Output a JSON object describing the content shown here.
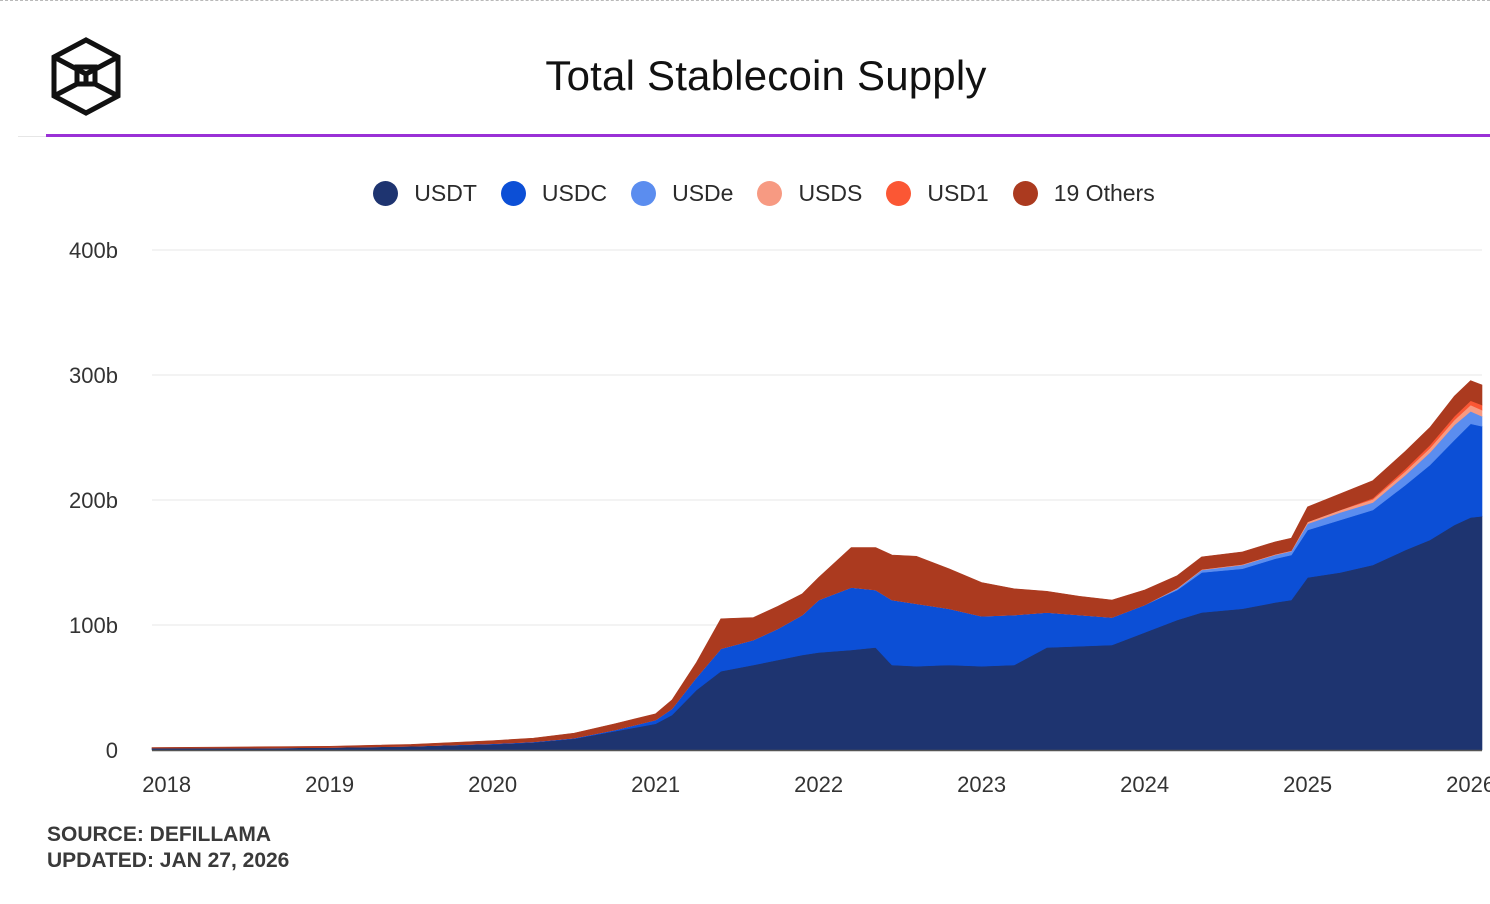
{
  "header": {
    "title": "Total Stablecoin Supply"
  },
  "footer": {
    "source": "SOURCE: DEFILLAMA",
    "updated": "UPDATED: JAN 27, 2026"
  },
  "colors": {
    "USDT": "#1e3470",
    "USDC": "#0c4fd6",
    "USDe": "#5b8def",
    "USDS": "#f79a82",
    "USD1": "#fb5734",
    "others": "#ab3a1f",
    "accent_line": "#9a31d6"
  },
  "legend": [
    {
      "label": "USDT"
    },
    {
      "label": "USDC"
    },
    {
      "label": "USDe"
    },
    {
      "label": "USDS"
    },
    {
      "label": "USD1"
    },
    {
      "label": "19 Others"
    }
  ],
  "chart_data": {
    "type": "area",
    "stacked": true,
    "title": "Total Stablecoin Supply",
    "xlabel": "",
    "ylabel": "",
    "ylim": [
      0,
      400
    ],
    "y_unit": "billion USD",
    "yticks": [
      0,
      100,
      200,
      300,
      400
    ],
    "ytick_labels": [
      "0",
      "100b",
      "200b",
      "300b",
      "400b"
    ],
    "xlim": [
      2017.91,
      2026.07
    ],
    "xticks": [
      2018,
      2019,
      2020,
      2021,
      2022,
      2023,
      2024,
      2025,
      2026
    ],
    "xtick_labels": [
      "2018",
      "2019",
      "2020",
      "2021",
      "2022",
      "2023",
      "2024",
      "2025",
      "2026"
    ],
    "grid": true,
    "legend_position": "top-center",
    "x": [
      2017.91,
      2018.5,
      2019.0,
      2019.5,
      2020.0,
      2020.25,
      2020.5,
      2020.75,
      2021.0,
      2021.1,
      2021.25,
      2021.4,
      2021.6,
      2021.75,
      2021.9,
      2022.0,
      2022.2,
      2022.35,
      2022.45,
      2022.6,
      2022.8,
      2023.0,
      2023.2,
      2023.4,
      2023.6,
      2023.8,
      2024.0,
      2024.2,
      2024.35,
      2024.6,
      2024.8,
      2024.9,
      2025.0,
      2025.2,
      2025.4,
      2025.6,
      2025.75,
      2025.9,
      2026.0,
      2026.07
    ],
    "series": [
      {
        "name": "USDT",
        "values": [
          1.5,
          1.5,
          2.0,
          3.0,
          4.5,
          6.0,
          9.0,
          15.0,
          21.0,
          28.0,
          48.0,
          63.0,
          68.0,
          72.0,
          76.0,
          78.0,
          80.0,
          82.0,
          68.0,
          67.0,
          68.0,
          67.0,
          68.0,
          82.0,
          83.0,
          84.0,
          94.0,
          104.0,
          110.0,
          113.0,
          118.0,
          120.0,
          138.0,
          142.0,
          148.0,
          160.0,
          168.0,
          180.0,
          186.0,
          187.0
        ]
      },
      {
        "name": "USDC",
        "values": [
          0,
          0,
          0,
          0,
          0.5,
          0.5,
          0.5,
          1.0,
          3.0,
          5.0,
          10.0,
          18.0,
          20.0,
          25.0,
          32.0,
          42.0,
          50.0,
          46.0,
          52.0,
          50.0,
          45.0,
          40.0,
          40.0,
          28.0,
          25.0,
          22.0,
          22.0,
          24.0,
          32.0,
          32.0,
          35.0,
          36.0,
          38.0,
          42.0,
          44.0,
          52.0,
          60.0,
          68.0,
          75.0,
          72.0
        ]
      },
      {
        "name": "USDe",
        "values": [
          0,
          0,
          0,
          0,
          0,
          0,
          0,
          0,
          0,
          0,
          0,
          0,
          0,
          0,
          0,
          0,
          0,
          0,
          0,
          0,
          0,
          0,
          0,
          0,
          0,
          0,
          0,
          1.0,
          2.0,
          3.0,
          3.0,
          3.0,
          5.0,
          6.0,
          6.0,
          8.0,
          10.0,
          12.0,
          10.0,
          8.0
        ]
      },
      {
        "name": "USDS",
        "values": [
          0,
          0,
          0,
          0,
          0,
          0,
          0,
          0,
          0,
          0,
          0,
          0,
          0,
          0,
          0,
          0,
          0,
          0,
          0,
          0,
          0,
          0,
          0,
          0,
          0,
          0,
          0,
          0.5,
          0.5,
          0.5,
          0.5,
          0.5,
          1.5,
          2.0,
          2.5,
          3.0,
          3.5,
          4.0,
          5.0,
          5.0
        ]
      },
      {
        "name": "USD1",
        "values": [
          0,
          0,
          0,
          0,
          0,
          0,
          0,
          0,
          0,
          0,
          0,
          0,
          0,
          0,
          0,
          0,
          0,
          0,
          0,
          0,
          0,
          0,
          0,
          0,
          0,
          0,
          0,
          0,
          0,
          0,
          0,
          0,
          0,
          0,
          1.0,
          2.0,
          2.5,
          3.0,
          3.5,
          4.0
        ]
      },
      {
        "name": "19 Others",
        "values": [
          0.5,
          1.0,
          1.0,
          1.5,
          2.5,
          3.0,
          4.0,
          5.0,
          5.0,
          7.0,
          12.0,
          24.0,
          18.0,
          18.0,
          17.0,
          18.0,
          32.0,
          34.0,
          36.0,
          38.0,
          32.0,
          27.0,
          21.0,
          17.0,
          15.0,
          14.0,
          12.0,
          10.0,
          10.0,
          10.0,
          10.0,
          10.0,
          12.0,
          13.0,
          14.0,
          14.0,
          14.0,
          16.0,
          16.0,
          16.0
        ]
      }
    ]
  }
}
